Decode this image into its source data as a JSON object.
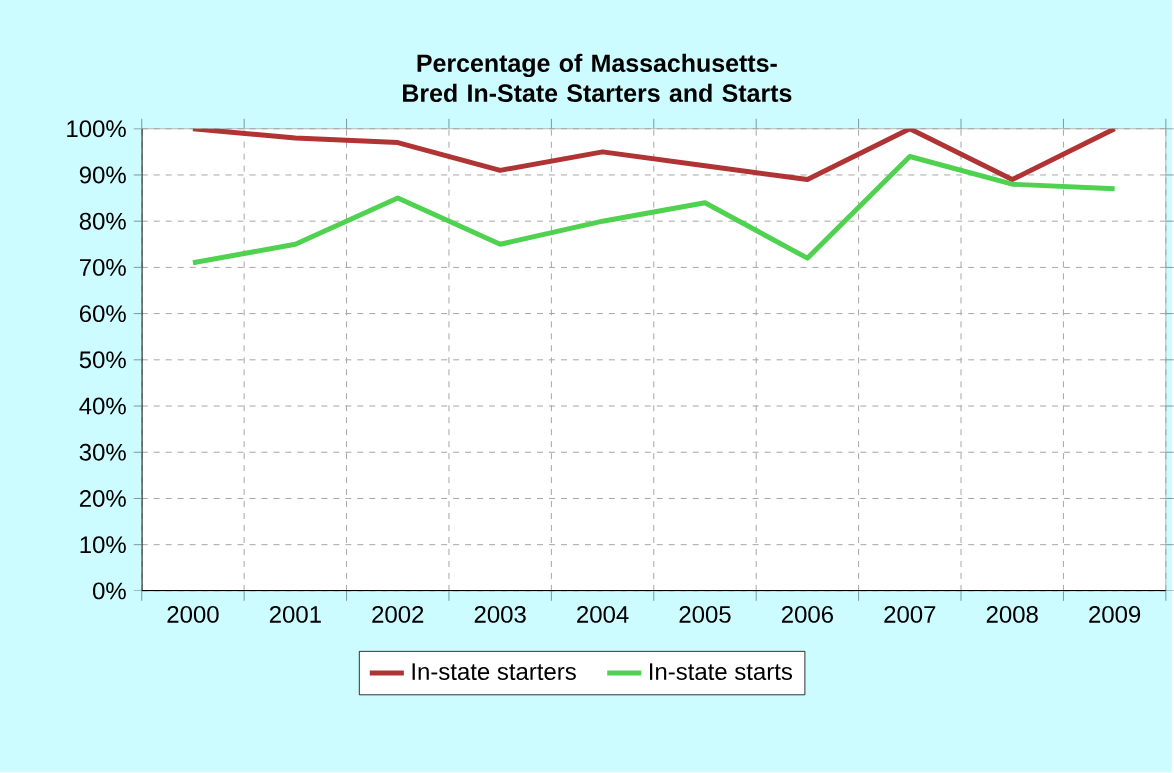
{
  "chart_data": {
    "type": "line",
    "title": "Percentage of Massachusetts-Bred In-State Starters and Starts",
    "categories": [
      "2000",
      "2001",
      "2002",
      "2003",
      "2004",
      "2005",
      "2006",
      "2007",
      "2008",
      "2009"
    ],
    "series": [
      {
        "name": "In-state starters",
        "color": "#b03434",
        "values": [
          100,
          98,
          97,
          91,
          95,
          92,
          89,
          100,
          89,
          100
        ]
      },
      {
        "name": "In-state starts",
        "color": "#4fd24f",
        "values": [
          71,
          75,
          85,
          75,
          80,
          84,
          72,
          94,
          88,
          87
        ]
      }
    ],
    "ylim": [
      0,
      100
    ],
    "yticks": [
      {
        "value": 0,
        "label": "0%"
      },
      {
        "value": 10,
        "label": "10%"
      },
      {
        "value": 20,
        "label": "20%"
      },
      {
        "value": 30,
        "label": "30%"
      },
      {
        "value": 40,
        "label": "40%"
      },
      {
        "value": 50,
        "label": "50%"
      },
      {
        "value": 60,
        "label": "60%"
      },
      {
        "value": 70,
        "label": "70%"
      },
      {
        "value": 80,
        "label": "80%"
      },
      {
        "value": 90,
        "label": "90%"
      },
      {
        "value": 100,
        "label": "100%"
      }
    ],
    "grid": true,
    "legend": "bottom",
    "marker": "none",
    "line_style": "solid"
  }
}
